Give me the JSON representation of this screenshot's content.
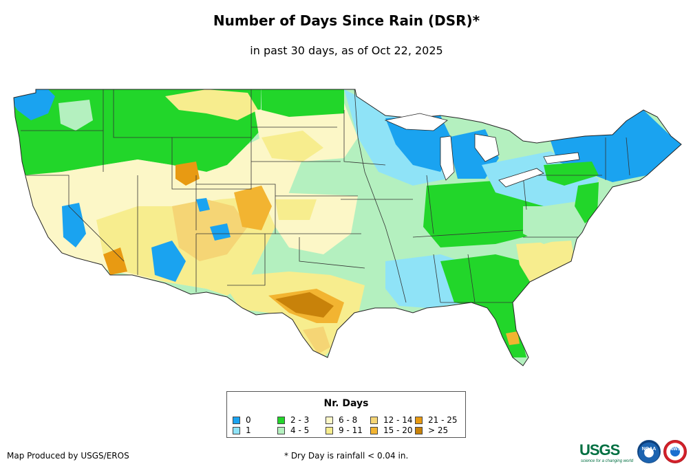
{
  "title": "Number of Days Since Rain (DSR)*",
  "subtitle": "in past 30 days, as of Oct 22, 2025",
  "legend": {
    "title": "Nr. Days",
    "classes": [
      {
        "label": "0",
        "color": "#1aa3f0"
      },
      {
        "label": "1",
        "color": "#8fe3f7"
      },
      {
        "label": "2 - 3",
        "color": "#22d62a"
      },
      {
        "label": "4 - 5",
        "color": "#b4f0bf"
      },
      {
        "label": "6 - 8",
        "color": "#fcf7c7"
      },
      {
        "label": "9 - 11",
        "color": "#f7ed8e"
      },
      {
        "label": "12 - 14",
        "color": "#f5d575"
      },
      {
        "label": "15 - 20",
        "color": "#f2b431"
      },
      {
        "label": "21 - 25",
        "color": "#e89a12"
      },
      {
        "label": "> 25",
        "color": "#c8820a"
      }
    ]
  },
  "credit": "Map Produced by USGS/EROS",
  "footnote": "* Dry Day is rainfall < 0.04 in.",
  "logos": {
    "usgs": "USGS",
    "usgs_tagline": "science for a changing world",
    "noaa": "NOAA",
    "nws": "NWS"
  }
}
